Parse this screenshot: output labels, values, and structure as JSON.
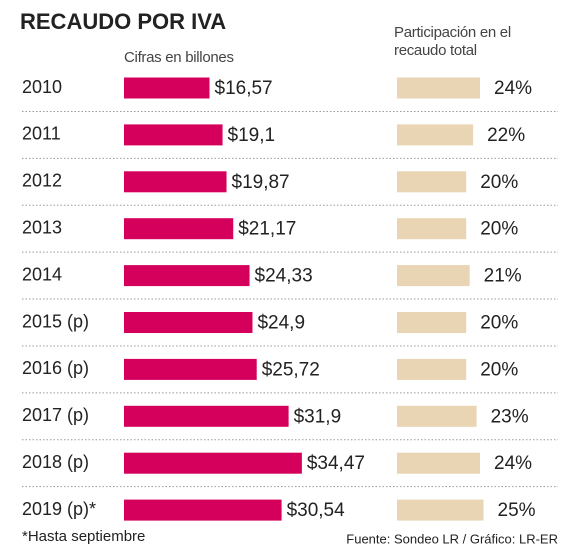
{
  "chart_data": {
    "type": "bar",
    "orientation": "horizontal",
    "title": "RECAUDO POR IVA",
    "categories": [
      "2010",
      "2011",
      "2012",
      "2013",
      "2014",
      "2015 (p)",
      "2016 (p)",
      "2017 (p)",
      "2018 (p)",
      "2019 (p)*"
    ],
    "series": [
      {
        "name": "Cifras en billones",
        "color": "#d4005c",
        "values": [
          16.57,
          19.1,
          19.87,
          21.17,
          24.33,
          24.9,
          25.72,
          31.9,
          34.47,
          30.54
        ],
        "value_labels": [
          "$16,57",
          "$19,1",
          "$19,87",
          "$21,17",
          "$24,33",
          "$24,9",
          "$25,72",
          "$31,9",
          "$34,47",
          "$30,54"
        ]
      },
      {
        "name": "Participación en el recaudo total",
        "color": "#e9d4b3",
        "values": [
          24,
          22,
          20,
          20,
          21,
          20,
          20,
          23,
          24,
          25
        ],
        "value_labels": [
          "24%",
          "22%",
          "20%",
          "20%",
          "21%",
          "20%",
          "20%",
          "23%",
          "24%",
          "25%"
        ]
      }
    ],
    "note": "*Hasta septiembre",
    "source": "Fuente: Sondeo LR / Gráfico: LR-ER"
  }
}
